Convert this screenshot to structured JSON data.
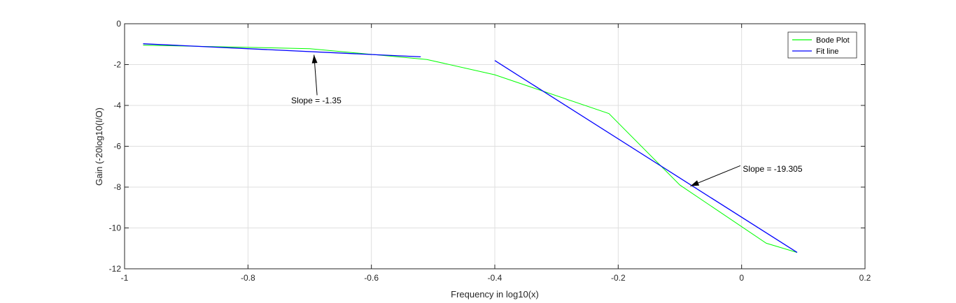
{
  "chart_data": {
    "type": "line",
    "title": "",
    "xlabel": "Frequency in log10(x)",
    "ylabel": "Gain (-20log10(I/O)",
    "xlim": [
      -1,
      0.2
    ],
    "ylim": [
      -12,
      0
    ],
    "xticks": [
      -1,
      -0.8,
      -0.6,
      -0.4,
      -0.2,
      0,
      0.2
    ],
    "xtick_labels": [
      "-1",
      "-0.8",
      "-0.6",
      "-0.4",
      "-0.2",
      "0",
      "0.2"
    ],
    "yticks": [
      0,
      -2,
      -4,
      -6,
      -8,
      -10,
      -12
    ],
    "ytick_labels": [
      "0",
      "-2",
      "-4",
      "-6",
      "-8",
      "-10",
      "-12"
    ],
    "grid": true,
    "legend_position": "top-right",
    "series": [
      {
        "name": "Bode Plot",
        "color": "#00ff00",
        "x": [
          -0.97,
          -0.7,
          -0.51,
          -0.4,
          -0.215,
          -0.1,
          0.04,
          0.09
        ],
        "y": [
          -1.05,
          -1.22,
          -1.75,
          -2.5,
          -4.4,
          -7.9,
          -10.75,
          -11.2
        ]
      },
      {
        "name": "Fit line",
        "color": "#0000ff",
        "x": [
          -0.97,
          -0.52
        ],
        "y": [
          -0.98,
          -1.62
        ]
      },
      {
        "name": "",
        "color": "#0000ff",
        "x": [
          -0.4,
          0.09
        ],
        "y": [
          -1.8,
          -11.2
        ]
      }
    ],
    "annotations": [
      {
        "text": "Slope = -1.35",
        "text_x": -0.73,
        "text_y": -3.9,
        "arrow_from": [
          -0.688,
          -3.5
        ],
        "arrow_to": [
          -0.693,
          -1.52
        ]
      },
      {
        "text": "Slope = -19.305",
        "text_x": 0.002,
        "text_y": -7.25,
        "arrow_from": [
          -0.002,
          -6.95
        ],
        "arrow_to": [
          -0.083,
          -7.95
        ]
      }
    ]
  }
}
